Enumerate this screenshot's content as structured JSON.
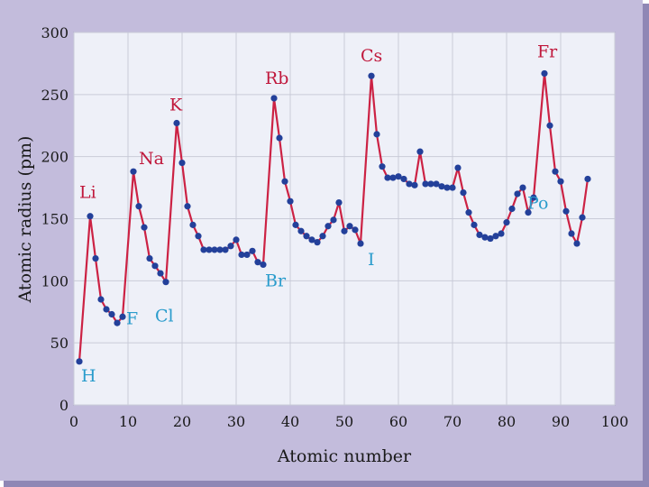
{
  "colors": {
    "frame": "#c3bcdc",
    "frame_shadow": "#8f87b5",
    "plot_bg": "#eef0f8",
    "grid": "#c9cbd8",
    "line": "#cc2244",
    "marker": "#23409a",
    "label_alkali": "#c0183c",
    "label_other": "#2a9ccc"
  },
  "chart_data": {
    "type": "line",
    "xlabel": "Atomic number",
    "ylabel": "Atomic radius (pm)",
    "xlim": [
      0,
      100
    ],
    "ylim": [
      0,
      300
    ],
    "xticks": [
      "0",
      "10",
      "20",
      "30",
      "40",
      "50",
      "60",
      "70",
      "80",
      "90",
      "100"
    ],
    "yticks": [
      "0",
      "50",
      "100",
      "150",
      "200",
      "250",
      "300"
    ],
    "grid": true,
    "series": [
      {
        "x": [
          1,
          3,
          4,
          5,
          6,
          7,
          8,
          9,
          11,
          12,
          13,
          14,
          15,
          16,
          17,
          19,
          20,
          21,
          22,
          23,
          24,
          25,
          26,
          27,
          28,
          29,
          30,
          31,
          32,
          33,
          34,
          35,
          37,
          38,
          39,
          40,
          41,
          42,
          43,
          44,
          45,
          46,
          47,
          48,
          49,
          50,
          51,
          52,
          53,
          55,
          56,
          57,
          58,
          59,
          60,
          61,
          62,
          63,
          64,
          65,
          66,
          67,
          68,
          69,
          70,
          71,
          72,
          73,
          74,
          75,
          76,
          77,
          78,
          79,
          80,
          81,
          82,
          83,
          84,
          85,
          87,
          88,
          89,
          90,
          91,
          92,
          93,
          94,
          95
        ],
        "y": [
          35,
          152,
          118,
          85,
          77,
          73,
          66,
          71,
          188,
          160,
          143,
          118,
          112,
          106,
          99,
          227,
          195,
          160,
          145,
          136,
          125,
          125,
          125,
          125,
          125,
          128,
          133,
          121,
          121,
          124,
          115,
          113,
          247,
          215,
          180,
          164,
          145,
          140,
          136,
          133,
          131,
          136,
          144,
          149,
          163,
          140,
          144,
          141,
          130,
          265,
          218,
          192,
          183,
          183,
          184,
          182,
          178,
          177,
          204,
          178,
          178,
          178,
          176,
          175,
          175,
          191,
          171,
          155,
          145,
          137,
          135,
          134,
          136,
          138,
          147,
          158,
          170,
          175,
          155,
          167,
          267,
          225,
          188,
          180,
          156,
          138,
          130,
          151,
          182
        ]
      }
    ],
    "annotations": [
      {
        "text": "H",
        "x": 1,
        "y": 35,
        "group": "other"
      },
      {
        "text": "Li",
        "x": 3,
        "y": 152,
        "group": "alkali"
      },
      {
        "text": "F",
        "x": 9,
        "y": 71,
        "group": "other"
      },
      {
        "text": "Na",
        "x": 11,
        "y": 188,
        "group": "alkali"
      },
      {
        "text": "Cl",
        "x": 17,
        "y": 99,
        "group": "other"
      },
      {
        "text": "K",
        "x": 19,
        "y": 227,
        "group": "alkali"
      },
      {
        "text": "Br",
        "x": 35,
        "y": 113,
        "group": "other"
      },
      {
        "text": "Rb",
        "x": 37,
        "y": 247,
        "group": "alkali"
      },
      {
        "text": "I",
        "x": 53,
        "y": 130,
        "group": "other"
      },
      {
        "text": "Cs",
        "x": 55,
        "y": 265,
        "group": "alkali"
      },
      {
        "text": "Fr",
        "x": 87,
        "y": 267,
        "group": "alkali"
      },
      {
        "text": "Po",
        "x": 84,
        "y": 155,
        "group": "other"
      }
    ]
  }
}
